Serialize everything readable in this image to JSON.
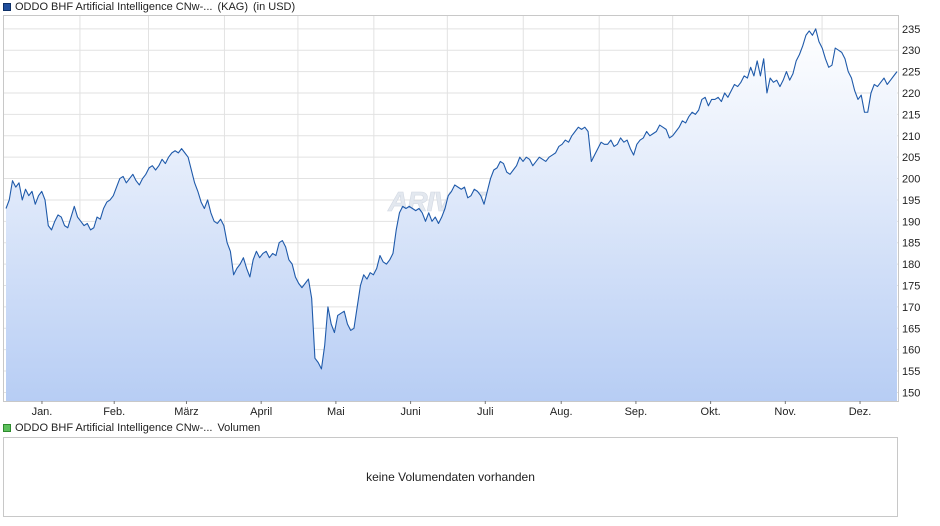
{
  "legend": {
    "price": {
      "name": "ODDO BHF Artificial Intelligence CNw-...",
      "source": "(KAG)",
      "currency": "(in USD)",
      "color": "#1f4e9c"
    },
    "volume": {
      "name": "ODDO BHF Artificial Intelligence CNw-...",
      "label": "Volumen",
      "color": "#5cc05c"
    }
  },
  "watermark": "ARIVA.DE",
  "volume_panel": {
    "message": "keine Volumendaten vorhanden"
  },
  "chart_data": {
    "type": "area",
    "title": "ODDO BHF Artificial Intelligence CNw-... (KAG) (in USD)",
    "xlabel": "",
    "ylabel": "",
    "x_ticks": [
      "Jan.",
      "Feb.",
      "März",
      "April",
      "Mai",
      "Juni",
      "Juli",
      "Aug.",
      "Sep.",
      "Okt.",
      "Nov.",
      "Dez."
    ],
    "y_ticks": [
      150,
      155,
      160,
      165,
      170,
      175,
      180,
      185,
      190,
      195,
      200,
      205,
      210,
      215,
      220,
      225,
      230,
      235
    ],
    "ylim": [
      148,
      238
    ],
    "grid": true,
    "y_axis_side": "right",
    "line_color": "#1f5aaa",
    "fill_top_color": "#ffffff",
    "fill_bottom_color": "#b7cdf4",
    "series": [
      {
        "values": [
          193,
          195,
          199.5,
          198,
          199,
          195,
          197.5,
          196,
          197,
          194,
          196,
          197,
          195,
          189,
          188,
          190,
          191.5,
          191,
          189,
          188.5,
          191,
          193.5,
          191,
          190,
          189,
          189.5,
          188,
          188.5,
          191,
          190.5,
          193,
          194.5,
          195,
          196,
          198,
          200,
          200.5,
          199,
          200,
          201,
          199.5,
          198.5,
          200,
          201,
          202.5,
          203,
          202,
          203,
          204.5,
          203.5,
          205,
          206,
          206.5,
          206,
          207,
          206,
          205,
          202,
          199,
          197,
          194.5,
          193,
          195,
          192,
          190,
          189.5,
          190.5,
          189,
          185,
          183,
          177.5,
          179,
          180,
          181.5,
          179,
          177,
          181,
          183,
          181.5,
          182.5,
          183,
          181.5,
          182.5,
          182,
          185,
          185.5,
          184,
          181,
          180,
          177,
          175.5,
          174.5,
          175.5,
          176.5,
          172,
          158,
          157,
          155.5,
          161,
          170,
          166,
          164,
          168,
          168.5,
          169,
          166,
          164.5,
          165,
          170,
          175,
          177.5,
          176.5,
          178,
          177.5,
          179,
          182,
          180.5,
          180,
          181,
          182.5,
          188,
          192,
          193.5,
          193,
          193.5,
          193,
          192.5,
          193,
          192,
          190,
          192,
          190,
          191,
          189.5,
          191,
          193,
          196,
          197,
          198.5,
          198,
          197.5,
          198,
          195.5,
          196,
          197.5,
          197,
          196,
          194,
          197,
          200,
          202,
          202.5,
          204,
          203.5,
          201.5,
          201,
          202,
          203,
          205,
          204,
          205,
          204.5,
          203,
          204,
          205,
          204.5,
          204,
          205,
          205.5,
          206,
          207.5,
          208,
          209,
          208.5,
          210,
          211,
          212,
          211.5,
          212,
          211,
          204,
          205.5,
          207,
          208.5,
          208,
          208,
          209,
          207.5,
          208,
          209.5,
          208.5,
          209,
          207,
          205.5,
          208,
          209,
          209.5,
          211,
          210,
          210.5,
          211,
          212.5,
          212,
          211.5,
          209.5,
          210,
          211,
          212,
          213.5,
          213,
          214.5,
          215.5,
          215,
          216,
          218.5,
          219,
          217,
          218.5,
          218.5,
          219,
          218,
          220,
          219,
          220.5,
          222,
          221.5,
          222.5,
          224,
          223.5,
          226,
          224,
          227.5,
          224,
          228,
          220,
          223.5,
          222.5,
          223,
          221.5,
          223,
          225,
          223,
          224.5,
          227.5,
          229,
          231,
          233.5,
          234.5,
          233.5,
          235,
          232,
          230.5,
          228,
          226,
          226.5,
          230.5,
          230,
          229.5,
          228,
          225,
          223.5,
          220.5,
          218.5,
          219.5,
          215.5,
          215.5,
          220,
          222,
          221.5,
          222.5,
          223.5,
          222,
          223,
          224,
          225
        ]
      }
    ]
  }
}
